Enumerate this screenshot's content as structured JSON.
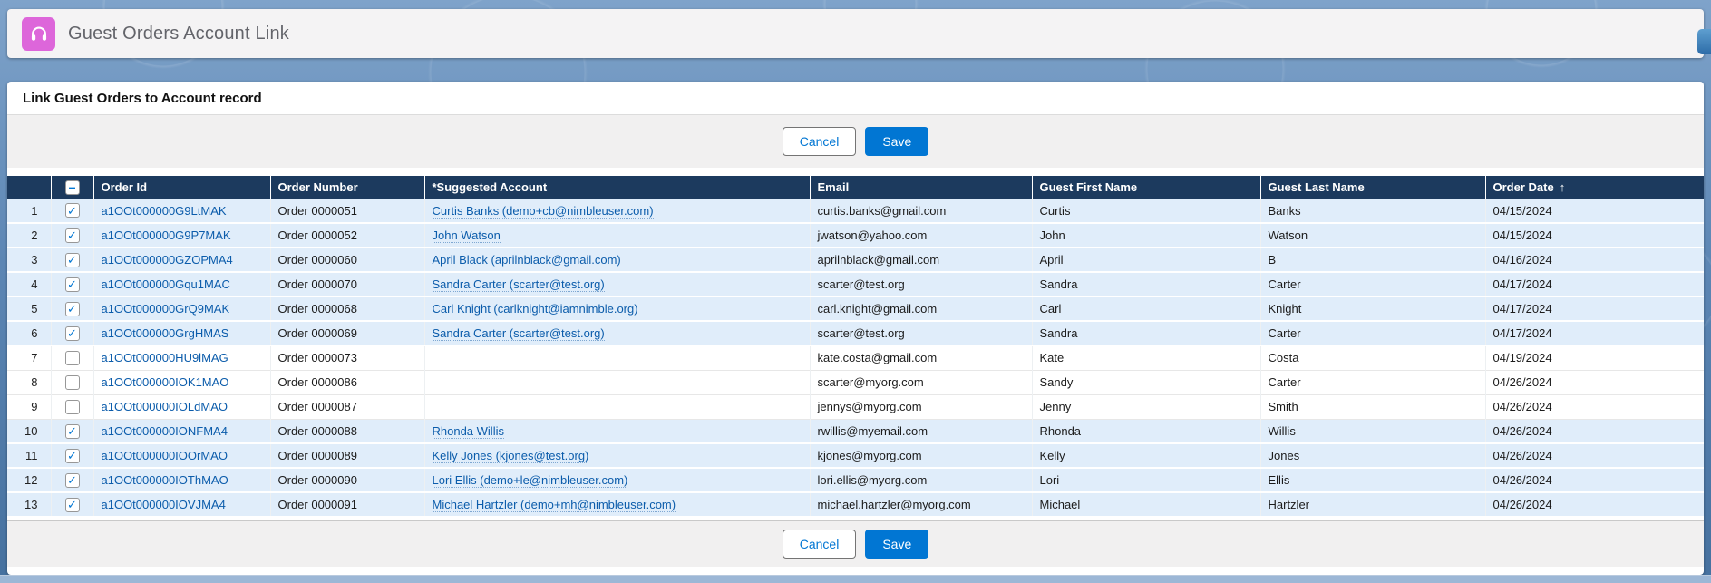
{
  "app": {
    "title": "Guest Orders Account Link",
    "icon_color": "#DD66DA"
  },
  "page": {
    "heading": "Link Guest Orders to Account record"
  },
  "actions": {
    "cancel_label": "Cancel",
    "save_label": "Save"
  },
  "icons": {
    "check_glyph": "✓",
    "minus_glyph": "–",
    "sort_ascending_glyph": "↑",
    "app_icon": "headphones-icon"
  },
  "colors": {
    "accent_blue": "#0176D3",
    "table_header_navy": "#1C3A5E",
    "selected_row_bg": "#E0EDFA",
    "link_blue": "#0B5CAB",
    "app_icon_pink": "#DD66DA"
  },
  "table": {
    "headers": [
      {
        "label": "Order Id",
        "sorted": false
      },
      {
        "label": "Order Number",
        "sorted": false
      },
      {
        "label": "*Suggested Account",
        "sorted": false
      },
      {
        "label": "Email",
        "sorted": false
      },
      {
        "label": "Guest First Name",
        "sorted": false
      },
      {
        "label": "Guest Last Name",
        "sorted": false
      },
      {
        "label": "Order Date",
        "sorted": true
      }
    ],
    "rows": [
      {
        "num": 1,
        "checked": true,
        "order_id": "a1OOt000000G9LtMAK",
        "order_number": "Order 0000051",
        "suggested_account": "Curtis Banks (demo+cb@nimbleuser.com)",
        "email": "curtis.banks@gmail.com",
        "first_name": "Curtis",
        "last_name": "Banks",
        "order_date": "04/15/2024"
      },
      {
        "num": 2,
        "checked": true,
        "order_id": "a1OOt000000G9P7MAK",
        "order_number": "Order 0000052",
        "suggested_account": "John Watson",
        "email": "jwatson@yahoo.com",
        "first_name": "John",
        "last_name": "Watson",
        "order_date": "04/15/2024"
      },
      {
        "num": 3,
        "checked": true,
        "order_id": "a1OOt000000GZOPMA4",
        "order_number": "Order 0000060",
        "suggested_account": "April Black (aprilnblack@gmail.com)",
        "email": "aprilnblack@gmail.com",
        "first_name": "April",
        "last_name": "B",
        "order_date": "04/16/2024"
      },
      {
        "num": 4,
        "checked": true,
        "order_id": "a1OOt000000Gqu1MAC",
        "order_number": "Order 0000070",
        "suggested_account": "Sandra Carter (scarter@test.org)",
        "email": "scarter@test.org",
        "first_name": "Sandra",
        "last_name": "Carter",
        "order_date": "04/17/2024"
      },
      {
        "num": 5,
        "checked": true,
        "order_id": "a1OOt000000GrQ9MAK",
        "order_number": "Order 0000068",
        "suggested_account": "Carl Knight (carlknight@iamnimble.org)",
        "email": "carl.knight@gmail.com",
        "first_name": "Carl",
        "last_name": "Knight",
        "order_date": "04/17/2024"
      },
      {
        "num": 6,
        "checked": true,
        "order_id": "a1OOt000000GrgHMAS",
        "order_number": "Order 0000069",
        "suggested_account": "Sandra Carter (scarter@test.org)",
        "email": "scarter@test.org",
        "first_name": "Sandra",
        "last_name": "Carter",
        "order_date": "04/17/2024"
      },
      {
        "num": 7,
        "checked": false,
        "order_id": "a1OOt000000HU9lMAG",
        "order_number": "Order 0000073",
        "suggested_account": "",
        "email": "kate.costa@gmail.com",
        "first_name": "Kate",
        "last_name": "Costa",
        "order_date": "04/19/2024"
      },
      {
        "num": 8,
        "checked": false,
        "order_id": "a1OOt000000IOK1MAO",
        "order_number": "Order 0000086",
        "suggested_account": "",
        "email": "scarter@myorg.com",
        "first_name": "Sandy",
        "last_name": "Carter",
        "order_date": "04/26/2024"
      },
      {
        "num": 9,
        "checked": false,
        "order_id": "a1OOt000000IOLdMAO",
        "order_number": "Order 0000087",
        "suggested_account": "",
        "email": "jennys@myorg.com",
        "first_name": "Jenny",
        "last_name": "Smith",
        "order_date": "04/26/2024"
      },
      {
        "num": 10,
        "checked": true,
        "order_id": "a1OOt000000IONFMA4",
        "order_number": "Order 0000088",
        "suggested_account": "Rhonda Willis",
        "email": "rwillis@myemail.com",
        "first_name": "Rhonda",
        "last_name": "Willis",
        "order_date": "04/26/2024"
      },
      {
        "num": 11,
        "checked": true,
        "order_id": "a1OOt000000IOOrMAO",
        "order_number": "Order 0000089",
        "suggested_account": "Kelly Jones (kjones@test.org)",
        "email": "kjones@myorg.com",
        "first_name": "Kelly",
        "last_name": "Jones",
        "order_date": "04/26/2024"
      },
      {
        "num": 12,
        "checked": true,
        "order_id": "a1OOt000000IOThMAO",
        "order_number": "Order 0000090",
        "suggested_account": "Lori Ellis (demo+le@nimbleuser.com)",
        "email": "lori.ellis@myorg.com",
        "first_name": "Lori",
        "last_name": "Ellis",
        "order_date": "04/26/2024"
      },
      {
        "num": 13,
        "checked": true,
        "order_id": "a1OOt000000IOVJMA4",
        "order_number": "Order 0000091",
        "suggested_account": "Michael Hartzler (demo+mh@nimbleuser.com)",
        "email": "michael.hartzler@myorg.com",
        "first_name": "Michael",
        "last_name": "Hartzler",
        "order_date": "04/26/2024"
      }
    ]
  }
}
